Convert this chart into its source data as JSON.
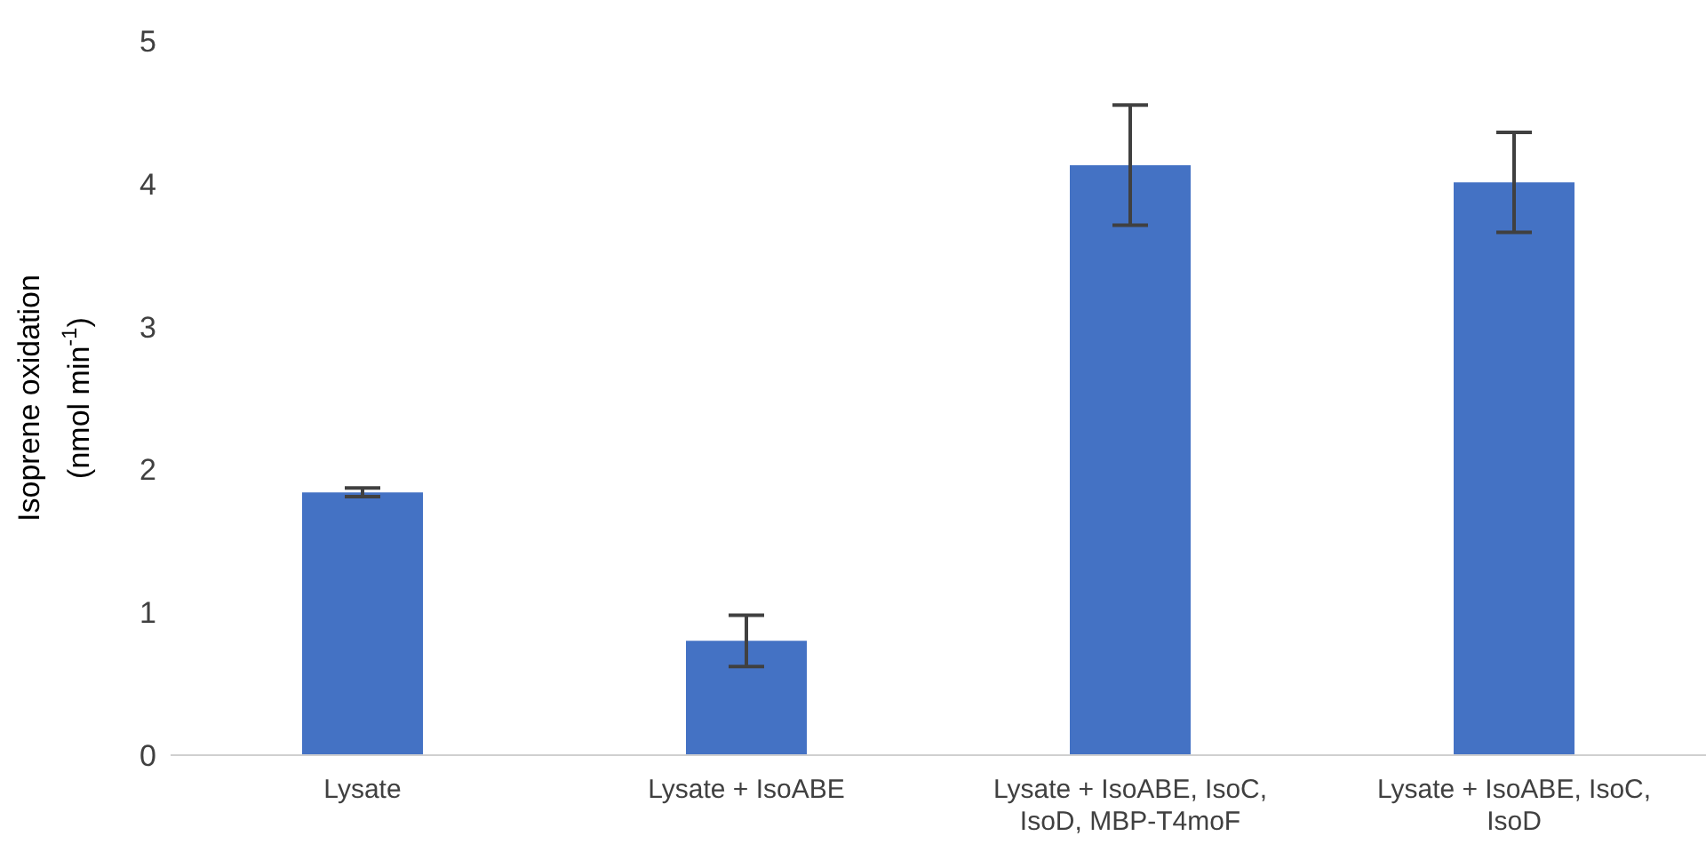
{
  "chart_data": {
    "type": "bar",
    "ylabel": "Isoprene oxidation\n(nmol min$^{-1}$)",
    "categories": [
      "Lysate",
      "Lysate + IsoABE",
      "Lysate + IsoABE, IsoC, IsoD, MBP-T4moF",
      "Lysate + IsoABE, IsoC, IsoD"
    ],
    "values": [
      1.84,
      0.8,
      4.13,
      4.01
    ],
    "errors": [
      0.03,
      0.18,
      0.42,
      0.35
    ],
    "color": "#4472c4",
    "ylim": [
      0,
      5
    ],
    "yticks": [
      0,
      1,
      2,
      3,
      4,
      5
    ],
    "grid": false
  }
}
